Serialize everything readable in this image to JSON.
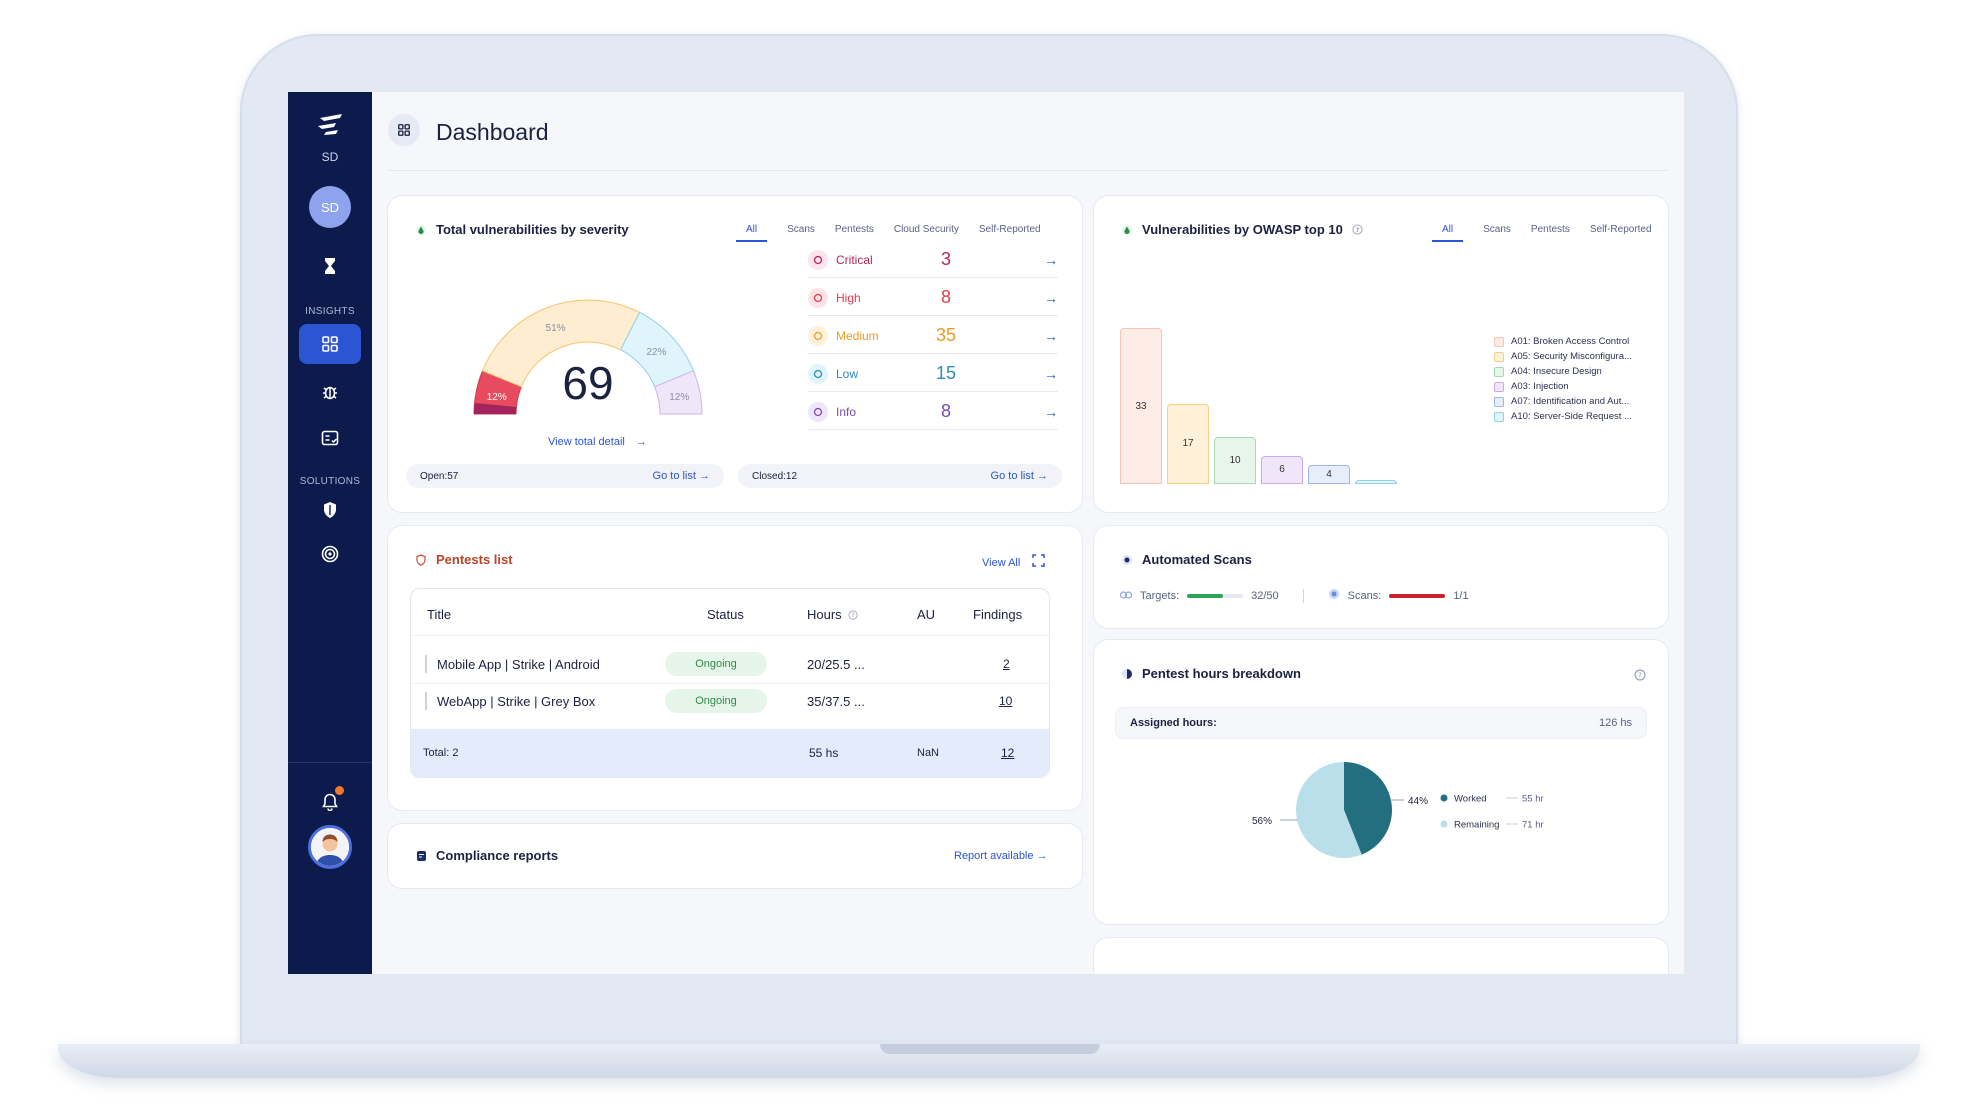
{
  "sidebar": {
    "org": "SD",
    "avatar_initials": "SD",
    "section_insights": "INSIGHTS",
    "section_solutions": "SOLUTIONS"
  },
  "header": {
    "title": "Dashboard"
  },
  "severity_card": {
    "title": "Total vulnerabilities by severity",
    "tabs": [
      "All",
      "Scans",
      "Pentests",
      "Cloud Security",
      "Self-Reported"
    ],
    "total": "69",
    "view_total": "View total detail",
    "gauge": [
      {
        "label": "12%",
        "value": 12,
        "color": "#e84a5f"
      },
      {
        "label": "51%",
        "value": 51,
        "color": "#ffedd1"
      },
      {
        "label": "22%",
        "value": 22,
        "color": "#dff5fb"
      },
      {
        "label": "12%",
        "value": 12,
        "color": "#f0e6fa"
      }
    ],
    "gauge_extra": {
      "value": 3,
      "color": "#a1255c"
    },
    "levels": [
      {
        "name": "Critical",
        "count": "3",
        "color": "#b8245a",
        "bg": "#fce4ee"
      },
      {
        "name": "High",
        "count": "8",
        "color": "#e23b4a",
        "bg": "#fde3e5"
      },
      {
        "name": "Medium",
        "count": "35",
        "color": "#ee9a22",
        "bg": "#fff1db"
      },
      {
        "name": "Low",
        "count": "15",
        "color": "#2b8db8",
        "bg": "#e0f4fa"
      },
      {
        "name": "Info",
        "count": "8",
        "color": "#7a4bb3",
        "bg": "#efe6f9"
      }
    ],
    "open_label": "Open:57",
    "closed_label": "Closed:12",
    "go_to_list": "Go to list"
  },
  "owasp_card": {
    "title": "Vulnerabilities by OWASP top 10",
    "tabs": [
      "All",
      "Scans",
      "Pentests",
      "Self-Reported"
    ],
    "legend": [
      {
        "label": "A01: Broken Access Control",
        "color": "#f5c3b8",
        "fill": "#fdebe6"
      },
      {
        "label": "A05: Security Misconfigura...",
        "color": "#f7cf86",
        "fill": "#fff1d9"
      },
      {
        "label": "A04: Insecure Design",
        "color": "#a8d9b6",
        "fill": "#e7f6ea"
      },
      {
        "label": "A03: Injection",
        "color": "#cfa9e6",
        "fill": "#f1e6f9"
      },
      {
        "label": "A07: Identification and Aut...",
        "color": "#9db5ea",
        "fill": "#e6edfb"
      },
      {
        "label": "A10: Server-Side Request ...",
        "color": "#8fd1e6",
        "fill": "#e2f4fa"
      }
    ]
  },
  "chart_data": {
    "type": "bar",
    "categories": [
      "A01: Broken Access Control",
      "A05: Security Misconfigura...",
      "A04: Insecure Design",
      "A03: Injection",
      "A07: Identification and Aut...",
      "A10: Server-Side Request ..."
    ],
    "values": [
      33,
      17,
      10,
      6,
      4,
      0.5
    ],
    "labels": [
      "33",
      "17",
      "10",
      "6",
      "4",
      ""
    ],
    "ylim": [
      0,
      36
    ],
    "grid": false,
    "legend": "right"
  },
  "pentests_card": {
    "title": "Pentests list",
    "view_all": "View All",
    "columns": [
      "Title",
      "Status",
      "Hours",
      "AU",
      "Findings"
    ],
    "rows": [
      {
        "title": "Mobile App | Strike | Android",
        "status": "Ongoing",
        "hours": "20/25.5 ...",
        "au": "",
        "findings": "2"
      },
      {
        "title": "WebApp | Strike | Grey Box",
        "status": "Ongoing",
        "hours": "35/37.5 ...",
        "au": "",
        "findings": "10"
      }
    ],
    "total": {
      "label": "Total: 2",
      "hours": "55 hs",
      "au": "NaN",
      "findings": "12"
    }
  },
  "compliance_card": {
    "title": "Compliance reports",
    "link": "Report available"
  },
  "scans_card": {
    "title": "Automated Scans",
    "targets_label": "Targets:",
    "targets_value": "32/50",
    "targets_fraction": 0.64,
    "scans_label": "Scans:",
    "scans_value": "1/1",
    "scans_fraction": 1.0
  },
  "hours_card": {
    "title": "Pentest hours breakdown",
    "assigned_label": "Assigned hours:",
    "assigned_value": "126 hs",
    "pie": [
      {
        "name": "Worked",
        "percent": 44,
        "label": "44%",
        "hours": "55 hrs",
        "color": "#236f80"
      },
      {
        "name": "Remaining",
        "percent": 56,
        "label": "56%",
        "hours": "71 hrs",
        "color": "#b9e0ea"
      }
    ]
  }
}
